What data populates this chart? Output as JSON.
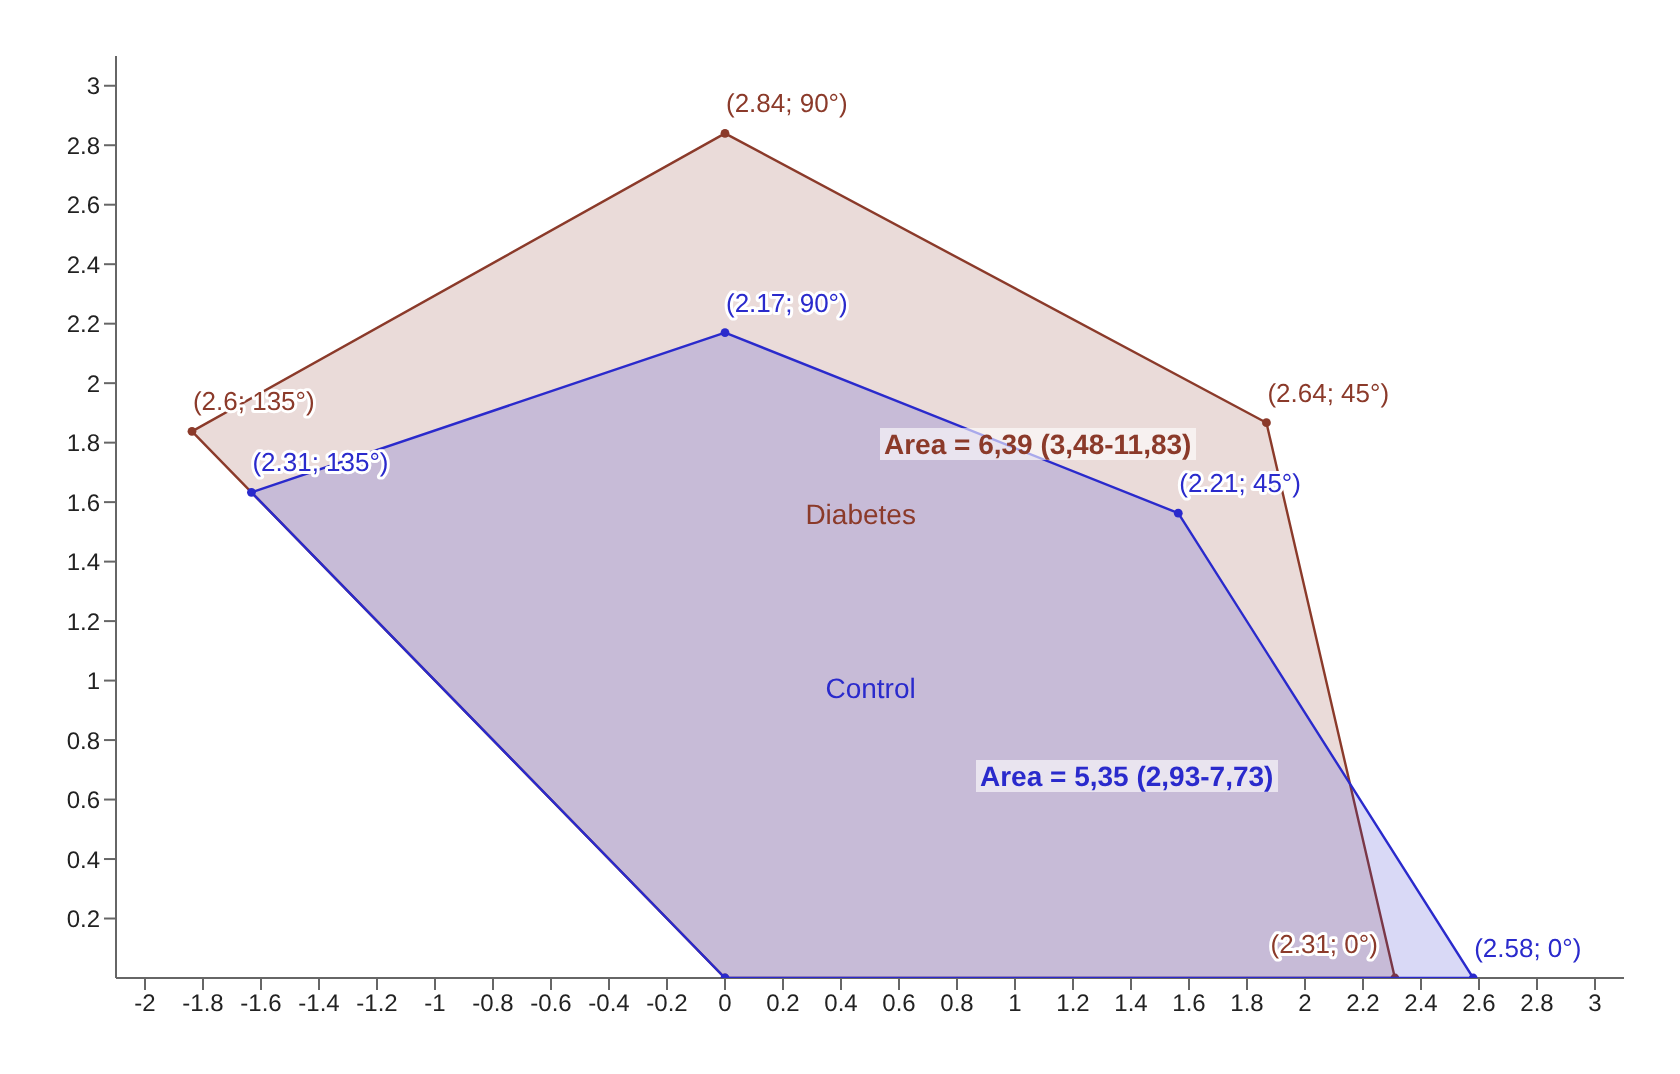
{
  "chart_data": {
    "type": "area",
    "series": [
      {
        "name": "Diabetes",
        "color": "#8b3a2a",
        "x": [
          0,
          2.31,
          1.867,
          0,
          -1.838
        ],
        "values": [
          0,
          0,
          1.867,
          2.84,
          1.838
        ],
        "value_labels": [
          null,
          "(2.31; 0°)",
          "(2.64; 45°)",
          "(2.84; 90°)",
          "(2.6; 135°)"
        ]
      },
      {
        "name": "Control",
        "color": "#2a2acc",
        "x": [
          0,
          2.58,
          1.563,
          0,
          -1.633
        ],
        "values": [
          0,
          0,
          1.563,
          2.17,
          1.633
        ],
        "value_labels": [
          null,
          "(2.58; 0°)",
          "(2.21; 45°)",
          "(2.17; 90°)",
          "(2.31; 135°)"
        ]
      }
    ],
    "annotations": [
      "Area = 6,39 (3,48-11,83)",
      "Area = 5,35 (2,93-7,73)"
    ],
    "xlim": [
      -2.1,
      3.1
    ],
    "xticks": [
      -2,
      -1.8,
      -1.6,
      -1.4,
      -1.2,
      -1,
      -0.8,
      -0.6,
      -0.4,
      -0.2,
      0,
      0.2,
      0.4,
      0.6,
      0.8,
      1,
      1.2,
      1.4,
      1.6,
      1.8,
      2,
      2.2,
      2.4,
      2.6,
      2.8,
      3
    ],
    "ylim": [
      0,
      3.1
    ],
    "yticks": [
      0.2,
      0.4,
      0.6,
      0.8,
      1,
      1.2,
      1.4,
      1.6,
      1.8,
      2,
      2.2,
      2.4,
      2.6,
      2.8,
      3
    ],
    "marker": "circle",
    "legend": false
  }
}
